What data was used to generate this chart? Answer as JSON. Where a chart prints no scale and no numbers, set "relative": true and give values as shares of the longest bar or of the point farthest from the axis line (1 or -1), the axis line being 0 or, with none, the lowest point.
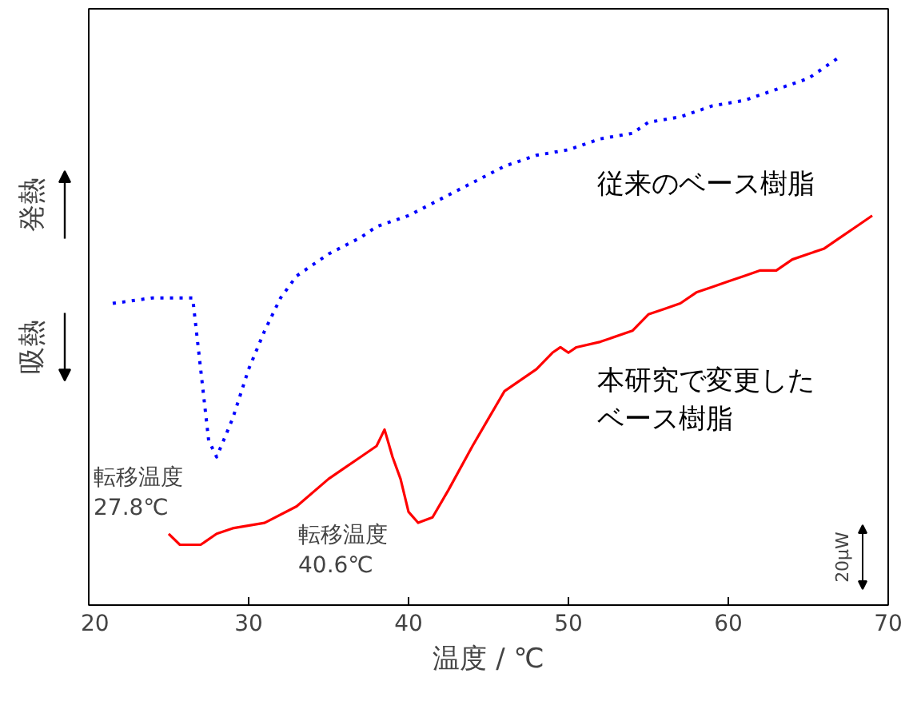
{
  "chart_data": {
    "type": "line",
    "relative": true,
    "xlabel": "温度 / ℃",
    "xlim": [
      20,
      70
    ],
    "xticks": [
      20,
      30,
      40,
      50,
      60,
      70
    ],
    "tick_labels": "x",
    "grid": false,
    "marker": "none",
    "series": [
      {
        "name": "従来のベース樹脂",
        "color": "#0000ff",
        "line_style": "dotted",
        "x": [
          21.5,
          24,
          26.5,
          27,
          27.5,
          28,
          29,
          30,
          31,
          32,
          33,
          35,
          37,
          38,
          40,
          42,
          44,
          46,
          48,
          50,
          52,
          54,
          55,
          57,
          59,
          61,
          63,
          65,
          67
        ],
        "values": [
          0.55,
          0.56,
          0.56,
          0.43,
          0.3,
          0.27,
          0.34,
          0.43,
          0.5,
          0.56,
          0.6,
          0.64,
          0.67,
          0.69,
          0.71,
          0.74,
          0.77,
          0.8,
          0.82,
          0.83,
          0.85,
          0.86,
          0.88,
          0.89,
          0.91,
          0.92,
          0.94,
          0.96,
          1.0
        ]
      },
      {
        "name": "本研究で変更したベース樹脂",
        "color": "#ff0000",
        "line_style": "solid",
        "x": [
          25,
          25.7,
          27,
          28,
          29,
          31,
          33,
          35,
          36,
          37,
          38,
          38.5,
          39,
          39.5,
          40,
          40.6,
          41.5,
          42.5,
          44,
          45,
          46,
          47,
          48,
          49,
          49.5,
          50,
          50.5,
          52,
          54,
          55,
          56,
          57,
          58,
          59,
          60,
          61,
          62,
          63,
          64,
          65,
          66,
          67,
          68,
          69
        ],
        "values": [
          0.13,
          0.11,
          0.11,
          0.13,
          0.14,
          0.15,
          0.18,
          0.23,
          0.25,
          0.27,
          0.29,
          0.32,
          0.27,
          0.23,
          0.17,
          0.15,
          0.16,
          0.21,
          0.29,
          0.34,
          0.39,
          0.41,
          0.43,
          0.46,
          0.47,
          0.46,
          0.47,
          0.48,
          0.5,
          0.53,
          0.54,
          0.55,
          0.57,
          0.58,
          0.59,
          0.6,
          0.61,
          0.61,
          0.63,
          0.64,
          0.65,
          0.67,
          0.69,
          0.71
        ]
      }
    ],
    "annotations": [
      {
        "text": "転移温度\n27.8℃",
        "x": 27.8,
        "y": 0.27
      },
      {
        "text": "転移温度\n40.6℃",
        "x": 40.6,
        "y": 0.15
      },
      "発熱",
      "吸熱",
      "20μW"
    ]
  }
}
